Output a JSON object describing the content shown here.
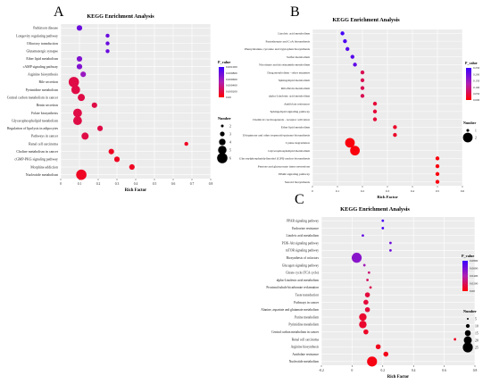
{
  "colors": {
    "low_p": "#ff0000",
    "mid_p": "#b01fb0",
    "high_p": "#3b00ff"
  },
  "chart_data": [
    {
      "panel_label": "A",
      "type": "scatter",
      "title": "KEGG Enrichment Analysis",
      "xlabel": "Rich Factor",
      "ylabel": "",
      "xlim": [
        0,
        0.8
      ],
      "xticks": [
        "0",
        "0.1",
        "0.2",
        "0.3",
        "0.4",
        "0.5",
        "0.6",
        "0.7",
        "0.8"
      ],
      "grid": true,
      "color_legend": {
        "title": "P_value",
        "ticks": [
          "0.001000",
          "0.000800",
          "0.000600",
          "0.000400",
          "0.000200",
          "0.00"
        ],
        "range": [
          0,
          0.001
        ]
      },
      "size_legend": {
        "title": "Number",
        "ticks": [
          "2",
          "3",
          "4",
          "5",
          "6"
        ]
      },
      "categories": [
        "Parkinson disease",
        "Longevity regulating pathway",
        "Olfactory transduction",
        "Glutamatergic synapse",
        "Ether lipid metabolism",
        "cAMP signaling pathway",
        "Arginine biosynthesis",
        "Bile secretion",
        "Pyrimidine metabolism",
        "Central carbon metabolism in cancer",
        "Renin secretion",
        "Folate biosynthesis",
        "Glycerophospholipid metabolism",
        "Regulation of lipolysis in adipocytes",
        "Pathways in cancer",
        "Renal cell carcinoma",
        "Choline metabolism in cancer",
        "cGMP-PKG signaling pathway",
        "Morphine addiction",
        "Nucleotide metabolism"
      ],
      "x": [
        0.1,
        0.25,
        0.25,
        0.25,
        0.1,
        0.1,
        0.12,
        0.07,
        0.08,
        0.11,
        0.18,
        0.09,
        0.09,
        0.21,
        0.13,
        0.67,
        0.27,
        0.3,
        0.38,
        0.11
      ],
      "sizes": [
        3,
        2,
        2,
        2,
        3,
        3,
        3,
        6,
        5,
        4,
        3,
        5,
        5,
        3,
        4,
        2,
        3,
        3,
        3,
        6
      ],
      "p_values": [
        0.0008,
        0.0008,
        0.0008,
        0.0008,
        0.0007,
        0.0007,
        0.0006,
        0.0002,
        0.0002,
        0.0002,
        0.0002,
        0.0002,
        0.0002,
        0.0002,
        0.0002,
        0.0001,
        0.0001,
        0.0001,
        0.0001,
        0.0001
      ]
    },
    {
      "panel_label": "B",
      "type": "scatter",
      "title": "KEGG Enrichment Analysis",
      "xlabel": "Rich Factor",
      "ylabel": "",
      "xlim": [
        0,
        0.6
      ],
      "xticks": [
        "0",
        "0.1",
        "0.2",
        "0.3",
        "0.4",
        "0.5",
        "0.6"
      ],
      "grid": true,
      "color_legend": {
        "title": "P_value",
        "ticks": [
          "0.250",
          "0.200",
          "0.150",
          "0.100",
          "0.050",
          "0.000"
        ],
        "range": [
          0,
          0.25
        ]
      },
      "size_legend": {
        "title": "Number",
        "ticks": [
          "1",
          "2"
        ]
      },
      "categories": [
        "Linoleic acid metabolism",
        "Pantothenate and CoA biosynthesis",
        "Phenylalanine, tyrosine and tryptophan biosynthesis",
        "Sulfur metabolism",
        "Nicotinate and nicotinamide metabolism",
        "Drug metabolism - other enzymes",
        "Sphingolipid metabolism",
        "Riboflavin metabolism",
        "alpha-Linolenic acid metabolism",
        "Antifolate resistance",
        "Sphingolipid signaling pathway",
        "Chemical carcinogenesis - receptor activation",
        "Ether lipid metabolism",
        "Ubiquinone and other terpenoid-quinone biosynthesis",
        "Lysine degradation",
        "Glycerophospholipid metabolism",
        "Glycosylphosphatidylinositol (GPI)-anchor biosynthesis",
        "Pentose and glucuronate interconversions",
        "PPAR signaling pathway",
        "Steroid biosynthesis"
      ],
      "x": [
        0.12,
        0.13,
        0.14,
        0.16,
        0.17,
        0.2,
        0.2,
        0.2,
        0.2,
        0.25,
        0.25,
        0.25,
        0.33,
        0.33,
        0.15,
        0.17,
        0.5,
        0.5,
        0.5,
        0.5
      ],
      "sizes": [
        1,
        1,
        1,
        1,
        1,
        1,
        1,
        1,
        1,
        1,
        1,
        1,
        1,
        1,
        2,
        2,
        1,
        1,
        1,
        1
      ],
      "p_values": [
        0.24,
        0.23,
        0.22,
        0.22,
        0.21,
        0.06,
        0.06,
        0.06,
        0.06,
        0.04,
        0.04,
        0.04,
        0.03,
        0.03,
        0.01,
        0.01,
        0.01,
        0.01,
        0.01,
        0.01
      ]
    },
    {
      "panel_label": "C",
      "type": "scatter",
      "title": "KEGG Enrichment Analysis",
      "xlabel": "Rich Factor",
      "ylabel": "",
      "xlim": [
        -0.2,
        0.8
      ],
      "xticks": [
        "-0.2",
        "0",
        "0.2",
        "0.4",
        "0.6",
        "0.8"
      ],
      "grid": true,
      "color_legend": {
        "title": "P_value",
        "ticks": [
          "0.0800",
          "0.0600",
          "0.0400",
          "0.0200",
          "0.00"
        ],
        "range": [
          0,
          0.09
        ]
      },
      "size_legend": {
        "title": "Number",
        "ticks": [
          "5",
          "10",
          "15",
          "20",
          "25"
        ]
      },
      "categories": [
        "PPAR signaling pathway",
        "Endocrine resistance",
        "Linoleic acid metabolism",
        "PI3K-Akt signaling pathway",
        "mTOR signaling pathway",
        "Biosynthesis of cofactors",
        "Glucagon signaling pathway",
        "Citrate cycle (TCA cycle)",
        "alpha-Linolenic acid metabolism",
        "Proximal tubule bicarbonate reclamation",
        "Taste transduction",
        "Pathways in cancer",
        "Alanine, aspartate and glutamate metabolism",
        "Purine metabolism",
        "Pyrimidine metabolism",
        "Central carbon metabolism in cancer",
        "Renal cell carcinoma",
        "Arginine biosynthesis",
        "Antifolate resistance",
        "Nucleotide metabolism"
      ],
      "x": [
        0.2,
        0.2,
        0.07,
        0.25,
        0.25,
        0.03,
        0.08,
        0.11,
        0.1,
        0.12,
        0.1,
        0.09,
        0.1,
        0.07,
        0.07,
        0.09,
        0.67,
        0.17,
        0.22,
        0.13
      ],
      "sizes": [
        1,
        1,
        1,
        1,
        1,
        4,
        1,
        1,
        1,
        1,
        2,
        2,
        2,
        3,
        3,
        2,
        1,
        2,
        2,
        4
      ],
      "p_values": [
        0.085,
        0.085,
        0.075,
        0.07,
        0.07,
        0.06,
        0.05,
        0.03,
        0.025,
        0.02,
        0.015,
        0.015,
        0.015,
        0.012,
        0.012,
        0.01,
        0.01,
        0.008,
        0.006,
        0.005
      ]
    }
  ]
}
